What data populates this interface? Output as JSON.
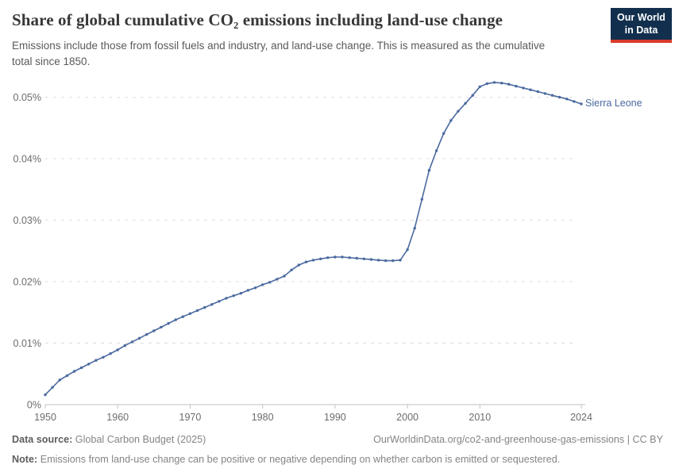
{
  "header": {
    "title": "Share of global cumulative CO₂ emissions including land-use change",
    "subtitle": "Emissions include those from fossil fuels and industry, and land-use change. This is measured as the cumulative total since 1850."
  },
  "logo": {
    "line1": "Our World",
    "line2": "in Data",
    "bg_color": "#12304e",
    "accent_color": "#d93a2b"
  },
  "chart_data": {
    "type": "line",
    "title": "Share of global cumulative CO₂ emissions including land-use change",
    "entity": "Sierra Leone",
    "unit": "%",
    "xlabel": "",
    "ylabel": "",
    "xlim": [
      1950,
      2024
    ],
    "ylim": [
      0,
      0.053
    ],
    "grid": "horizontal dashed",
    "legend_position": "line-end",
    "line_color": "#4a699f",
    "x": [
      1950,
      1951,
      1952,
      1953,
      1954,
      1955,
      1956,
      1957,
      1958,
      1959,
      1960,
      1961,
      1962,
      1963,
      1964,
      1965,
      1966,
      1967,
      1968,
      1969,
      1970,
      1971,
      1972,
      1973,
      1974,
      1975,
      1976,
      1977,
      1978,
      1979,
      1980,
      1981,
      1982,
      1983,
      1984,
      1985,
      1986,
      1987,
      1988,
      1989,
      1990,
      1991,
      1992,
      1993,
      1994,
      1995,
      1996,
      1997,
      1998,
      1999,
      2000,
      2001,
      2002,
      2003,
      2004,
      2005,
      2006,
      2007,
      2008,
      2009,
      2010,
      2011,
      2012,
      2013,
      2014,
      2015,
      2016,
      2017,
      2018,
      2019,
      2020,
      2021,
      2022,
      2023,
      2024
    ],
    "values": [
      0.0016,
      0.0028,
      0.004,
      0.0047,
      0.0054,
      0.006,
      0.0066,
      0.0072,
      0.0077,
      0.0083,
      0.0089,
      0.0096,
      0.0102,
      0.0108,
      0.0114,
      0.012,
      0.0126,
      0.0132,
      0.0138,
      0.0143,
      0.0148,
      0.0153,
      0.0158,
      0.0163,
      0.0168,
      0.0173,
      0.0177,
      0.0181,
      0.0186,
      0.019,
      0.0195,
      0.0199,
      0.0204,
      0.0209,
      0.0219,
      0.0227,
      0.0232,
      0.0235,
      0.0237,
      0.0239,
      0.024,
      0.024,
      0.0239,
      0.0238,
      0.0237,
      0.0236,
      0.0235,
      0.0234,
      0.0234,
      0.0235,
      0.0252,
      0.0287,
      0.0334,
      0.0381,
      0.0413,
      0.0441,
      0.0462,
      0.0477,
      0.049,
      0.0503,
      0.0517,
      0.0522,
      0.0524,
      0.0523,
      0.0521,
      0.0518,
      0.0515,
      0.0512,
      0.0509,
      0.0506,
      0.0503,
      0.05,
      0.0497,
      0.0493,
      0.0489
    ],
    "yticks": [
      {
        "value": 0,
        "label": "0%"
      },
      {
        "value": 0.01,
        "label": "0.01%"
      },
      {
        "value": 0.02,
        "label": "0.02%"
      },
      {
        "value": 0.03,
        "label": "0.03%"
      },
      {
        "value": 0.04,
        "label": "0.04%"
      },
      {
        "value": 0.05,
        "label": "0.05%"
      }
    ],
    "xticks": [
      {
        "value": 1950,
        "label": "1950"
      },
      {
        "value": 1960,
        "label": "1960"
      },
      {
        "value": 1970,
        "label": "1970"
      },
      {
        "value": 1980,
        "label": "1980"
      },
      {
        "value": 1990,
        "label": "1990"
      },
      {
        "value": 2000,
        "label": "2000"
      },
      {
        "value": 2010,
        "label": "2010"
      },
      {
        "value": 2024,
        "label": "2024"
      }
    ]
  },
  "colors": {
    "line": "#4a699f",
    "grid": "#dedede",
    "axis": "#c2c2c2",
    "tick_text": "#6c6c6c"
  },
  "footer": {
    "source_label": "Data source:",
    "source": "Global Carbon Budget (2025)",
    "link": "OurWorldinData.org/co2-and-greenhouse-gas-emissions | CC BY",
    "note_label": "Note:",
    "note": "Emissions from land-use change can be positive or negative depending on whether carbon is emitted or sequestered."
  }
}
